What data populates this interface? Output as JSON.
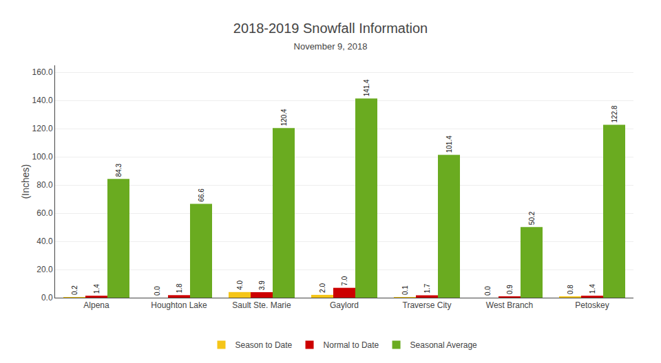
{
  "chart_data": {
    "type": "bar",
    "title": "2018-2019 Snowfall Information",
    "subtitle": "November 9, 2018",
    "ylabel": "(Inches)",
    "categories": [
      "Alpena",
      "Houghton Lake",
      "Sault Ste. Marie",
      "Gaylord",
      "Traverse City",
      "West Branch",
      "Petoskey"
    ],
    "series": [
      {
        "name": "Season to Date",
        "color": "#F5C518",
        "values": [
          0.2,
          0.0,
          4.0,
          2.0,
          0.1,
          0.0,
          0.8
        ],
        "value_labels": [
          "0.2",
          "0.0",
          "4.0",
          "2.0",
          "0.1",
          "0.0",
          "0.8"
        ]
      },
      {
        "name": "Normal to Date",
        "color": "#CC0000",
        "values": [
          1.4,
          1.8,
          3.9,
          7.0,
          1.7,
          0.9,
          1.4
        ],
        "value_labels": [
          "1.4",
          "1.8",
          "3.9",
          "7.0",
          "1.7",
          "0.9",
          "1.4"
        ]
      },
      {
        "name": "Seasonal Average",
        "color": "#6AAB20",
        "values": [
          84.3,
          66.6,
          120.4,
          141.4,
          101.4,
          50.2,
          122.8
        ],
        "value_labels": [
          "84.3",
          "66.6",
          "120.4",
          "141.4",
          "101.4",
          "50.2",
          "122.8"
        ]
      }
    ],
    "ylim": [
      0,
      165
    ],
    "yticks": [
      {
        "value": 0,
        "label": "0.0"
      },
      {
        "value": 20,
        "label": "20.0"
      },
      {
        "value": 40,
        "label": "40.0"
      },
      {
        "value": 60,
        "label": "60.0"
      },
      {
        "value": 80,
        "label": "80.0"
      },
      {
        "value": 100,
        "label": "100.0"
      },
      {
        "value": 120,
        "label": "120.0"
      },
      {
        "value": 140,
        "label": "140.0"
      },
      {
        "value": 160,
        "label": "160.0"
      }
    ],
    "grid": true,
    "data_labels": true,
    "legend": "bottom"
  }
}
